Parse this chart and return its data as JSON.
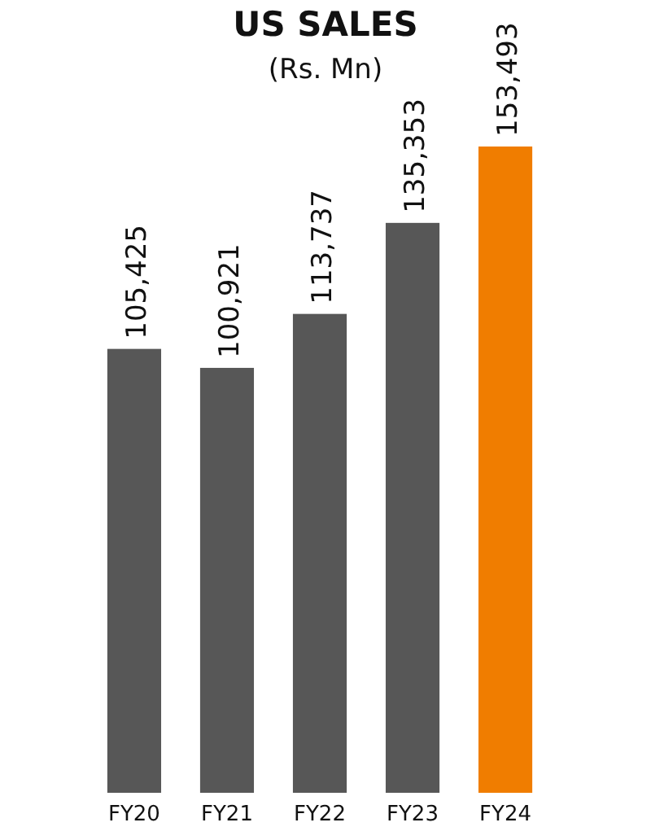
{
  "chart_data": {
    "type": "bar",
    "title": "US SALES",
    "subtitle": "(Rs. Mn)",
    "categories": [
      "FY20",
      "FY21",
      "FY22",
      "FY23",
      "FY24"
    ],
    "values": [
      105425,
      100921,
      113737,
      135353,
      153493
    ],
    "value_labels": [
      "105,425",
      "100,921",
      "113,737",
      "135,353",
      "153,493"
    ],
    "colors": [
      "#575757",
      "#575757",
      "#575757",
      "#575757",
      "#f07d00"
    ]
  }
}
